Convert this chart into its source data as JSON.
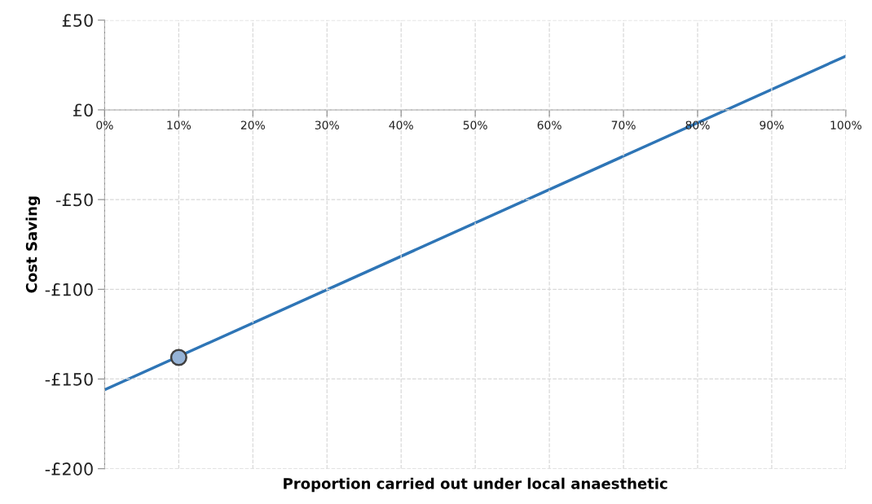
{
  "chart_data": {
    "type": "line",
    "xlabel": "Proportion carried out under local anaesthetic",
    "ylabel": "Cost Saving",
    "xlim": [
      0,
      100
    ],
    "ylim": [
      -200,
      50
    ],
    "xticks": [
      {
        "value": 0,
        "label": "0%"
      },
      {
        "value": 10,
        "label": "10%"
      },
      {
        "value": 20,
        "label": "20%"
      },
      {
        "value": 30,
        "label": "30%"
      },
      {
        "value": 40,
        "label": "40%"
      },
      {
        "value": 50,
        "label": "50%"
      },
      {
        "value": 60,
        "label": "60%"
      },
      {
        "value": 70,
        "label": "70%"
      },
      {
        "value": 80,
        "label": "80%"
      },
      {
        "value": 90,
        "label": "90%"
      },
      {
        "value": 100,
        "label": "100%"
      }
    ],
    "yticks": [
      {
        "value": -200,
        "label": "-£200"
      },
      {
        "value": -150,
        "label": "-£150"
      },
      {
        "value": -100,
        "label": "-£100"
      },
      {
        "value": -50,
        "label": "-£50"
      },
      {
        "value": 0,
        "label": "£0"
      },
      {
        "value": 50,
        "label": "£50"
      }
    ],
    "grid": true,
    "series": [
      {
        "color": "#2e75b6",
        "x": [
          0,
          100
        ],
        "values": [
          -156,
          30
        ]
      },
      {
        "type": "scatter",
        "color": "#95b3d7",
        "x": [
          10
        ],
        "values": [
          -138
        ],
        "marker": "circle"
      }
    ]
  }
}
